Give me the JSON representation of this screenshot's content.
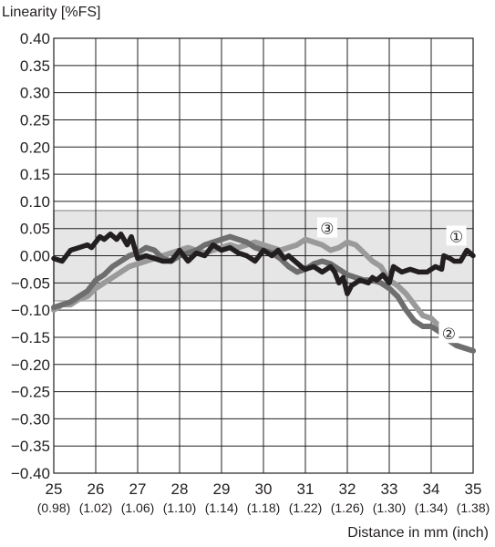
{
  "chart_data": {
    "type": "line",
    "ylabel": "Linearity [%FS]",
    "xlabel": "Distance in mm (inch)",
    "xlim": [
      25,
      35
    ],
    "ylim": [
      -0.4,
      0.4
    ],
    "x_ticks": [
      25,
      26,
      27,
      28,
      29,
      30,
      31,
      32,
      33,
      34,
      35
    ],
    "x_tick_labels": [
      "25",
      "26",
      "27",
      "28",
      "29",
      "30",
      "31",
      "32",
      "33",
      "34",
      "35"
    ],
    "x_tick_sublabels": [
      "(0.98)",
      "(1.02)",
      "(1.06)",
      "(1.10)",
      "(1.14)",
      "(1.18)",
      "(1.22)",
      "(1.26)",
      "(1.30)",
      "(1.34)",
      "(1.38)"
    ],
    "y_ticks": [
      0.4,
      0.35,
      0.3,
      0.25,
      0.2,
      0.15,
      0.1,
      0.05,
      0.0,
      -0.05,
      -0.1,
      -0.15,
      -0.2,
      -0.25,
      -0.3,
      -0.35,
      -0.4
    ],
    "y_tick_labels": [
      "0.40",
      "0.35",
      "0.30",
      "0.25",
      "0.20",
      "0.15",
      "0.10",
      "0.05",
      "0.00",
      "−0.05",
      "−0.10",
      "−0.15",
      "−0.20",
      "−0.25",
      "−0.30",
      "−0.35",
      "−0.40"
    ],
    "grid": true,
    "tolerance_band": [
      -0.083,
      0.083
    ],
    "colors": {
      "band_fill": "#e6e6e6",
      "band_edge": "#a8a8a8",
      "grid": "#231f20",
      "series_1": "#231f20",
      "series_2": "#6e6e6e",
      "series_3": "#9a9a9a"
    },
    "series": [
      {
        "marker": "①",
        "values": [
          [
            25.0,
            -0.005
          ],
          [
            25.2,
            -0.01
          ],
          [
            25.4,
            0.01
          ],
          [
            25.6,
            0.015
          ],
          [
            25.8,
            0.02
          ],
          [
            25.9,
            0.015
          ],
          [
            26.0,
            0.025
          ],
          [
            26.1,
            0.035
          ],
          [
            26.2,
            0.03
          ],
          [
            26.35,
            0.04
          ],
          [
            26.5,
            0.03
          ],
          [
            26.6,
            0.04
          ],
          [
            26.75,
            0.02
          ],
          [
            26.85,
            0.035
          ],
          [
            27.0,
            -0.005
          ],
          [
            27.2,
            0.0
          ],
          [
            27.4,
            -0.005
          ],
          [
            27.6,
            -0.01
          ],
          [
            27.8,
            -0.01
          ],
          [
            28.0,
            0.01
          ],
          [
            28.2,
            -0.01
          ],
          [
            28.4,
            0.005
          ],
          [
            28.6,
            0.0
          ],
          [
            28.8,
            0.02
          ],
          [
            29.0,
            0.01
          ],
          [
            29.2,
            0.015
          ],
          [
            29.4,
            0.005
          ],
          [
            29.6,
            0.0
          ],
          [
            29.8,
            -0.01
          ],
          [
            30.0,
            0.01
          ],
          [
            30.1,
            0.005
          ],
          [
            30.2,
            0.0
          ],
          [
            30.35,
            0.01
          ],
          [
            30.5,
            -0.005
          ],
          [
            30.6,
            0.0
          ],
          [
            30.75,
            -0.01
          ],
          [
            30.9,
            -0.02
          ],
          [
            31.0,
            -0.025
          ],
          [
            31.2,
            -0.02
          ],
          [
            31.4,
            -0.03
          ],
          [
            31.6,
            -0.02
          ],
          [
            31.7,
            -0.03
          ],
          [
            31.8,
            -0.05
          ],
          [
            31.9,
            -0.04
          ],
          [
            32.0,
            -0.07
          ],
          [
            32.1,
            -0.055
          ],
          [
            32.3,
            -0.045
          ],
          [
            32.5,
            -0.05
          ],
          [
            32.6,
            -0.04
          ],
          [
            32.7,
            -0.045
          ],
          [
            32.85,
            -0.035
          ],
          [
            33.0,
            -0.05
          ],
          [
            33.1,
            -0.02
          ],
          [
            33.3,
            -0.03
          ],
          [
            33.5,
            -0.025
          ],
          [
            33.7,
            -0.03
          ],
          [
            33.9,
            -0.03
          ],
          [
            34.1,
            -0.02
          ],
          [
            34.25,
            -0.025
          ],
          [
            34.3,
            0.0
          ],
          [
            34.45,
            -0.005
          ],
          [
            34.55,
            -0.01
          ],
          [
            34.7,
            -0.01
          ],
          [
            34.85,
            0.01
          ],
          [
            35.0,
            0.0
          ]
        ]
      },
      {
        "marker": "②",
        "values": [
          [
            25.0,
            -0.095
          ],
          [
            25.2,
            -0.09
          ],
          [
            25.4,
            -0.085
          ],
          [
            25.6,
            -0.075
          ],
          [
            25.8,
            -0.065
          ],
          [
            26.0,
            -0.045
          ],
          [
            26.2,
            -0.035
          ],
          [
            26.4,
            -0.02
          ],
          [
            26.6,
            -0.01
          ],
          [
            26.8,
            0.0
          ],
          [
            27.0,
            0.005
          ],
          [
            27.2,
            0.015
          ],
          [
            27.4,
            0.01
          ],
          [
            27.6,
            -0.005
          ],
          [
            27.8,
            -0.01
          ],
          [
            28.0,
            0.0
          ],
          [
            28.2,
            0.005
          ],
          [
            28.4,
            0.01
          ],
          [
            28.6,
            0.02
          ],
          [
            28.8,
            0.025
          ],
          [
            29.0,
            0.03
          ],
          [
            29.2,
            0.035
          ],
          [
            29.4,
            0.03
          ],
          [
            29.6,
            0.025
          ],
          [
            29.8,
            0.015
          ],
          [
            30.0,
            0.01
          ],
          [
            30.2,
            0.005
          ],
          [
            30.4,
            -0.005
          ],
          [
            30.6,
            -0.02
          ],
          [
            30.8,
            -0.03
          ],
          [
            31.0,
            -0.025
          ],
          [
            31.2,
            -0.015
          ],
          [
            31.4,
            -0.01
          ],
          [
            31.6,
            -0.015
          ],
          [
            31.8,
            -0.025
          ],
          [
            32.0,
            -0.035
          ],
          [
            32.2,
            -0.04
          ],
          [
            32.4,
            -0.045
          ],
          [
            32.6,
            -0.045
          ],
          [
            32.8,
            -0.05
          ],
          [
            33.0,
            -0.06
          ],
          [
            33.2,
            -0.075
          ],
          [
            33.4,
            -0.1
          ],
          [
            33.6,
            -0.12
          ],
          [
            33.8,
            -0.13
          ],
          [
            34.0,
            -0.13
          ],
          [
            34.2,
            -0.14
          ],
          [
            34.4,
            -0.155
          ],
          [
            34.6,
            -0.165
          ],
          [
            34.8,
            -0.17
          ],
          [
            35.0,
            -0.175
          ]
        ]
      },
      {
        "marker": "③",
        "values": [
          [
            25.0,
            -0.1
          ],
          [
            25.2,
            -0.09
          ],
          [
            25.4,
            -0.09
          ],
          [
            25.6,
            -0.08
          ],
          [
            25.8,
            -0.075
          ],
          [
            26.0,
            -0.06
          ],
          [
            26.2,
            -0.05
          ],
          [
            26.4,
            -0.04
          ],
          [
            26.6,
            -0.03
          ],
          [
            26.8,
            -0.02
          ],
          [
            27.0,
            -0.015
          ],
          [
            27.2,
            -0.01
          ],
          [
            27.4,
            -0.005
          ],
          [
            27.6,
            0.0
          ],
          [
            27.8,
            0.005
          ],
          [
            28.0,
            0.01
          ],
          [
            28.2,
            0.015
          ],
          [
            28.4,
            0.01
          ],
          [
            28.6,
            0.005
          ],
          [
            28.8,
            0.01
          ],
          [
            29.0,
            0.015
          ],
          [
            29.2,
            0.02
          ],
          [
            29.4,
            0.015
          ],
          [
            29.6,
            0.02
          ],
          [
            29.8,
            0.025
          ],
          [
            30.0,
            0.02
          ],
          [
            30.2,
            0.015
          ],
          [
            30.4,
            0.01
          ],
          [
            30.6,
            0.015
          ],
          [
            30.8,
            0.02
          ],
          [
            31.0,
            0.03
          ],
          [
            31.2,
            0.025
          ],
          [
            31.4,
            0.02
          ],
          [
            31.6,
            0.01
          ],
          [
            31.8,
            0.015
          ],
          [
            32.0,
            0.025
          ],
          [
            32.2,
            0.02
          ],
          [
            32.4,
            0.005
          ],
          [
            32.6,
            -0.01
          ],
          [
            32.8,
            -0.02
          ],
          [
            33.0,
            -0.045
          ],
          [
            33.2,
            -0.055
          ],
          [
            33.4,
            -0.07
          ],
          [
            33.6,
            -0.09
          ],
          [
            33.8,
            -0.11
          ],
          [
            34.0,
            -0.115
          ],
          [
            34.2,
            -0.13
          ],
          [
            34.4,
            -0.15
          ],
          [
            34.6,
            -0.165
          ],
          [
            34.8,
            -0.17
          ],
          [
            35.0,
            -0.175
          ]
        ]
      }
    ]
  }
}
